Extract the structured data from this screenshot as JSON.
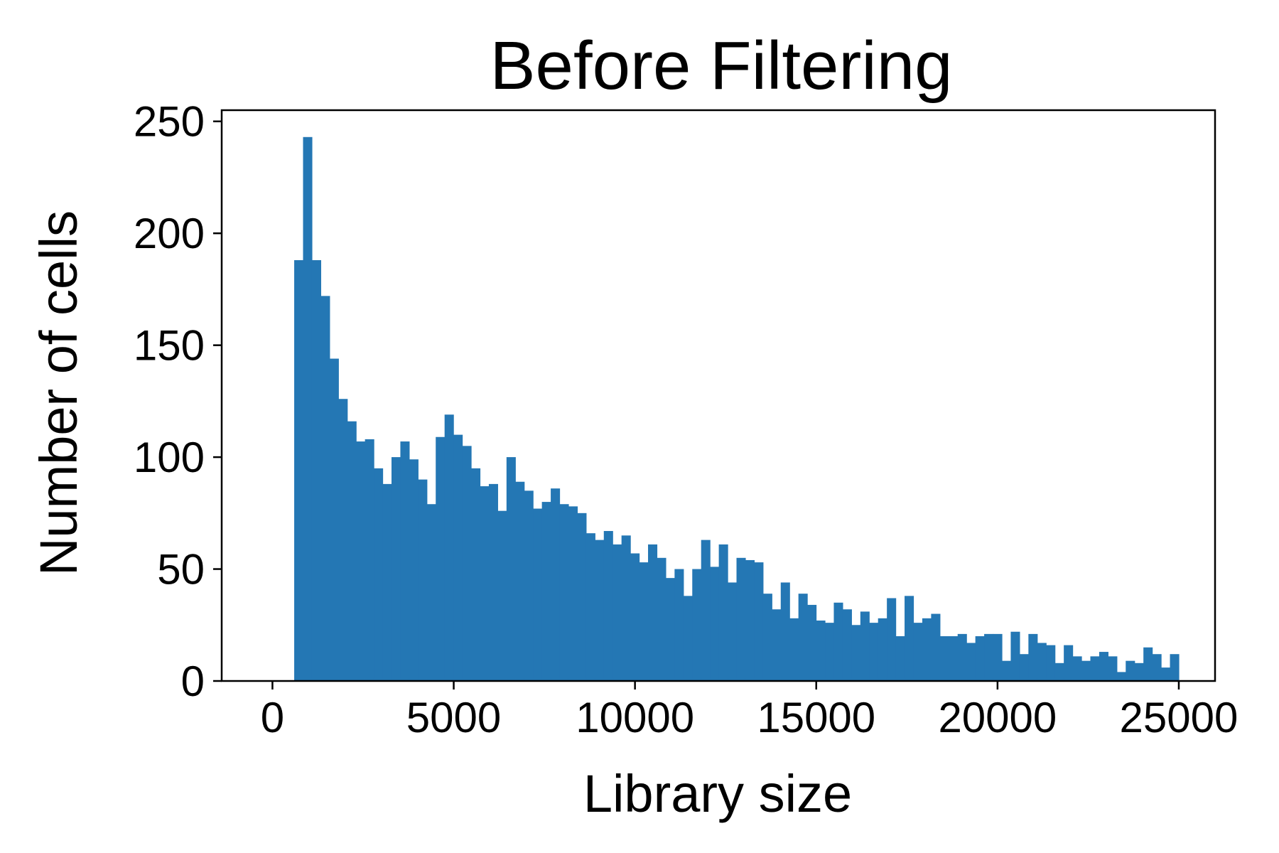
{
  "chart_data": {
    "type": "bar",
    "title": "Before Filtering",
    "xlabel": "Library size",
    "ylabel": "Number of cells",
    "xlim": [
      -1400,
      26000
    ],
    "ylim": [
      0,
      255
    ],
    "xticks": [
      0,
      5000,
      10000,
      15000,
      20000,
      25000
    ],
    "yticks": [
      0,
      50,
      100,
      150,
      200,
      250
    ],
    "bar_color": "#2477b4",
    "bin_start": 600,
    "bin_width": 244,
    "grid": false,
    "legend": "none",
    "values": [
      188,
      243,
      188,
      172,
      144,
      126,
      116,
      107,
      108,
      95,
      88,
      100,
      107,
      99,
      90,
      79,
      109,
      119,
      110,
      105,
      95,
      87,
      88,
      76,
      100,
      89,
      85,
      77,
      80,
      86,
      79,
      78,
      75,
      66,
      63,
      67,
      61,
      65,
      57,
      53,
      61,
      55,
      46,
      50,
      38,
      50,
      63,
      51,
      61,
      44,
      55,
      54,
      53,
      39,
      32,
      44,
      28,
      39,
      34,
      27,
      26,
      35,
      32,
      25,
      31,
      26,
      28,
      37,
      20,
      38,
      26,
      28,
      30,
      20,
      20,
      21,
      17,
      20,
      21,
      21,
      9,
      22,
      12,
      21,
      17,
      16,
      8,
      16,
      11,
      9,
      11,
      13,
      11,
      4,
      9,
      8,
      15,
      12,
      6,
      12
    ]
  }
}
